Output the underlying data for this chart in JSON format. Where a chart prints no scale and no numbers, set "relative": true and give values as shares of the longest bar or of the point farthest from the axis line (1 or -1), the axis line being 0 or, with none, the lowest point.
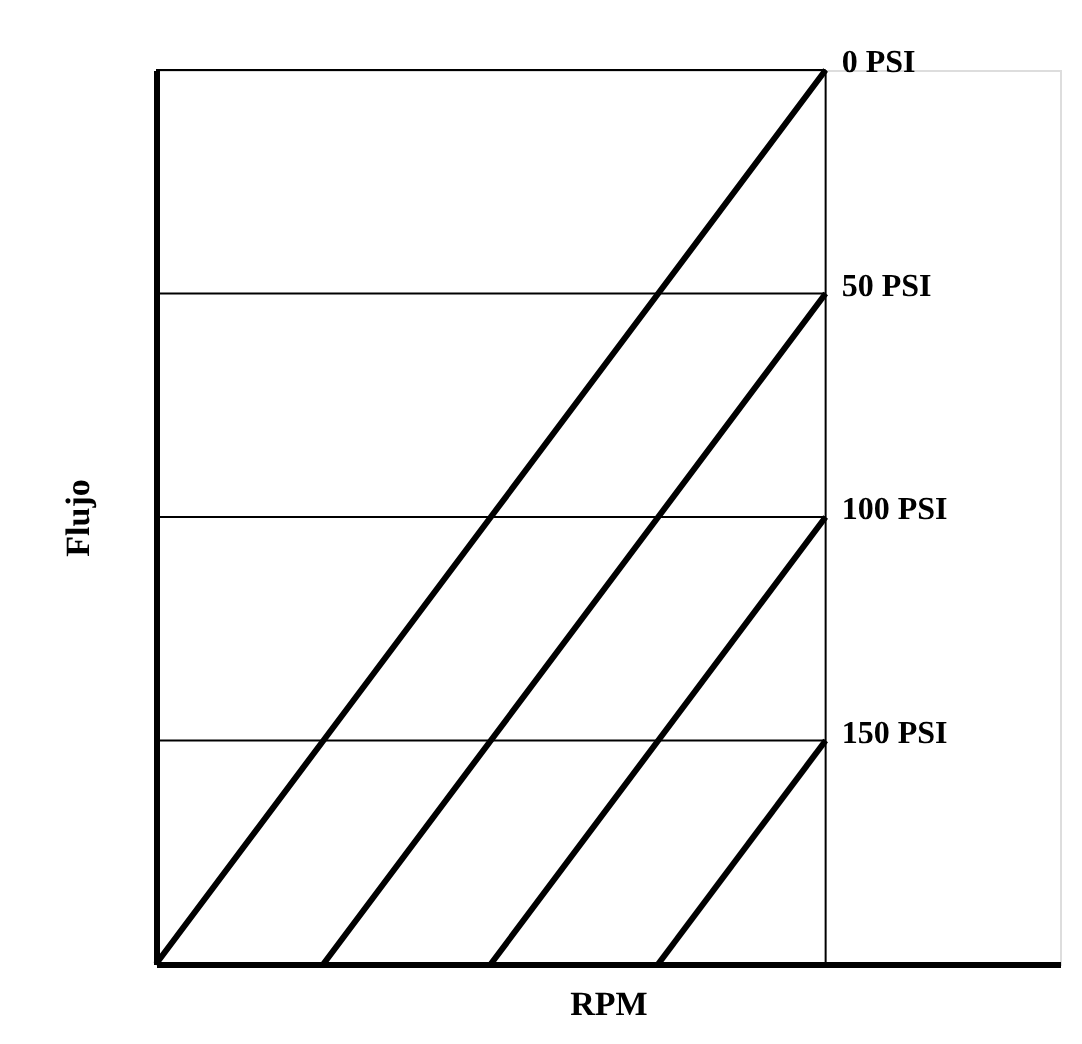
{
  "chart_data": {
    "type": "line",
    "relative": true,
    "xlabel": "RPM",
    "ylabel": "Flujo",
    "categories": [
      null,
      null,
      null,
      null,
      null
    ],
    "tick_labels": false,
    "grid": "y",
    "legend": false,
    "marker": "none",
    "line_style": "solid",
    "series": [
      {
        "name": "0 PSI",
        "color": "#000000",
        "values": [
          0,
          0.25,
          0.5,
          0.75,
          1
        ]
      },
      {
        "name": "50 PSI",
        "color": "#000000",
        "values": [
          null,
          0,
          0.25,
          0.5,
          0.75
        ]
      },
      {
        "name": "100 PSI",
        "color": "#000000",
        "values": [
          null,
          null,
          0,
          0.25,
          0.5
        ]
      },
      {
        "name": "150 PSI",
        "color": "#000000",
        "values": [
          null,
          null,
          null,
          0,
          0.25
        ]
      }
    ]
  }
}
